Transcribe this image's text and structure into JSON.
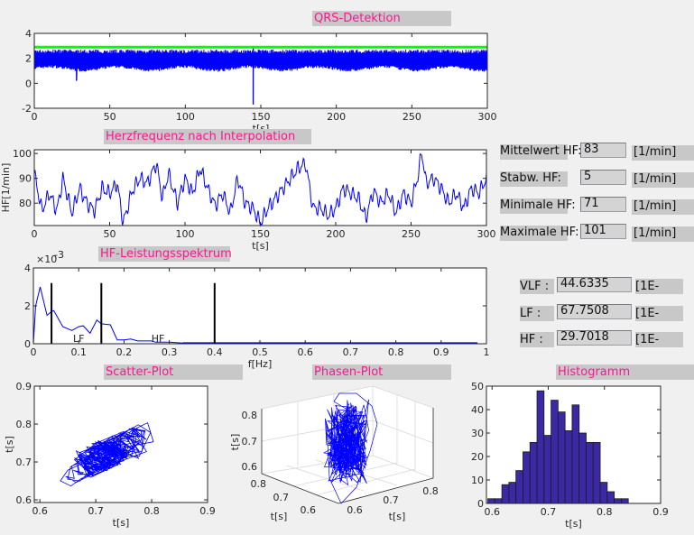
{
  "titles": {
    "qrs": "QRS-Detektion",
    "hf": "Herzfrequenz nach Interpolation",
    "spectrum": "HF-Leistungsspektrum",
    "scatter": "Scatter-Plot",
    "phase": "Phasen-Plot",
    "histogram": "Histogramm"
  },
  "stats": [
    {
      "label": "Mittelwert HF:",
      "value": "83",
      "unit": "[1/min]"
    },
    {
      "label": "Stabw. HF:",
      "value": "5",
      "unit": "[1/min]"
    },
    {
      "label": "Minimale HF:",
      "value": "71",
      "unit": "[1/min]"
    },
    {
      "label": "Maximale HF:",
      "value": "101",
      "unit": "[1/min]"
    }
  ],
  "bands": [
    {
      "label": "VLF :",
      "value": "44.6335",
      "unit": "[1E-"
    },
    {
      "label": "LF :",
      "value": "67.7508",
      "unit": "[1E-"
    },
    {
      "label": "HF :",
      "value": "29.7018",
      "unit": "[1E-"
    }
  ],
  "colors": {
    "signal": "#0000ff",
    "threshold": "#00ff00",
    "band_label": "#ff3333",
    "hist_bar": "#3b28a5",
    "title_text": "#ff1493"
  },
  "chart_data": [
    {
      "type": "line",
      "id": "qrs",
      "xlabel": "t[s]",
      "ylabel": "",
      "xlim": [
        0,
        300
      ],
      "ylim": [
        -2,
        4
      ],
      "xticks": [
        0,
        50,
        100,
        150,
        200,
        250,
        300
      ],
      "yticks": [
        4,
        2,
        0,
        -2
      ],
      "threshold": 2.9,
      "baseline": 1.4,
      "peak_level": 2.5,
      "artifacts": [
        {
          "t": 28,
          "min": 0.2
        },
        {
          "t": 145,
          "min": -1.7,
          "max": 3.0
        }
      ]
    },
    {
      "type": "line",
      "id": "hf",
      "xlabel": "t[s]",
      "ylabel": "HF[1/min]",
      "xlim": [
        0,
        300
      ],
      "ylim": [
        71,
        101.5
      ],
      "xticks": [
        0,
        50,
        100,
        150,
        200,
        250,
        300
      ],
      "yticks": [
        100,
        90,
        80
      ],
      "x": [
        0,
        5,
        10,
        15,
        19,
        25,
        30,
        35,
        40,
        45,
        50,
        55,
        59,
        65,
        70,
        75,
        81,
        85,
        89,
        95,
        100,
        105,
        110,
        115,
        120,
        125,
        130,
        135,
        140,
        145,
        150,
        155,
        160,
        165,
        170,
        175,
        180,
        185,
        190,
        195,
        200,
        205,
        210,
        215,
        220,
        225,
        230,
        235,
        240,
        245,
        250,
        255,
        257,
        260,
        265,
        270,
        275,
        280,
        285,
        290,
        295,
        300
      ],
      "y": [
        92,
        77,
        84,
        77,
        90,
        76,
        86,
        80,
        77,
        86,
        84,
        88,
        72,
        85,
        90,
        88,
        96,
        82,
        92,
        80,
        90,
        84,
        94,
        86,
        79,
        84,
        76,
        90,
        80,
        78,
        72,
        78,
        82,
        86,
        90,
        94,
        96,
        78,
        78,
        75,
        78,
        86,
        84,
        82,
        74,
        85,
        80,
        84,
        76,
        84,
        80,
        92,
        101,
        88,
        90,
        86,
        80,
        84,
        78,
        86,
        84,
        90
      ]
    },
    {
      "type": "line",
      "id": "spectrum",
      "xlabel": "f[Hz]",
      "ylabel": "",
      "yscale_label": "×10",
      "yscale_exp": "-3",
      "xlim": [
        0,
        1
      ],
      "ylim": [
        0,
        4
      ],
      "xticks": [
        0,
        0.1,
        0.2,
        0.3,
        0.4,
        0.5,
        0.6,
        0.7,
        0.8,
        0.9,
        1
      ],
      "yticks": [
        4,
        2,
        0
      ],
      "x": [
        0,
        0.005,
        0.015,
        0.03,
        0.04,
        0.045,
        0.065,
        0.085,
        0.1,
        0.11,
        0.125,
        0.14,
        0.15,
        0.17,
        0.185,
        0.2,
        0.215,
        0.23,
        0.26,
        0.27,
        0.3,
        0.33,
        0.98
      ],
      "y": [
        0,
        2.0,
        3.0,
        1.5,
        1.7,
        1.75,
        0.9,
        0.7,
        0.9,
        0.95,
        0.55,
        1.25,
        1.05,
        1.0,
        0.2,
        0.2,
        0.25,
        0.15,
        0.15,
        0.08,
        0.08,
        0.04,
        0.02
      ],
      "band_limits": [
        0.04,
        0.15,
        0.4
      ],
      "band_limit_height": 3.2,
      "annotations": [
        {
          "text": "LF",
          "x": 0.1
        },
        {
          "text": "HF",
          "x": 0.275
        }
      ]
    },
    {
      "type": "scatter",
      "id": "scatter",
      "xlabel": "t[s]",
      "ylabel": "t[s]",
      "xlim": [
        0.59,
        0.9
      ],
      "ylim": [
        0.593,
        0.9
      ],
      "xticks": [
        0.6,
        0.7,
        0.8,
        0.9
      ],
      "yticks": [
        0.9,
        0.8,
        0.7,
        0.6
      ]
    },
    {
      "type": "line3d",
      "id": "phase",
      "xlabel": "t[s]",
      "ylabel": "t[s]",
      "zlabel": "t[s]",
      "zticks": [
        0.8,
        0.7,
        0.6
      ],
      "xticks": [
        0.8,
        0.7,
        0.6
      ],
      "yticks": [
        0.6,
        0.7,
        0.8
      ],
      "grid": true
    },
    {
      "type": "bar",
      "id": "histogram",
      "xlabel": "t[s]",
      "ylabel": "",
      "xlim": [
        0.59,
        0.9
      ],
      "ylim": [
        0,
        50
      ],
      "xticks": [
        0.6,
        0.7,
        0.8,
        0.9
      ],
      "yticks": [
        50,
        40,
        30,
        20,
        10,
        0
      ],
      "bin_start": 0.5925,
      "bin_width": 0.0125,
      "values": [
        2,
        2,
        8,
        9,
        14,
        22,
        26,
        48,
        29,
        44,
        39,
        31,
        42,
        30,
        26,
        26,
        9,
        5,
        2,
        2
      ]
    }
  ]
}
